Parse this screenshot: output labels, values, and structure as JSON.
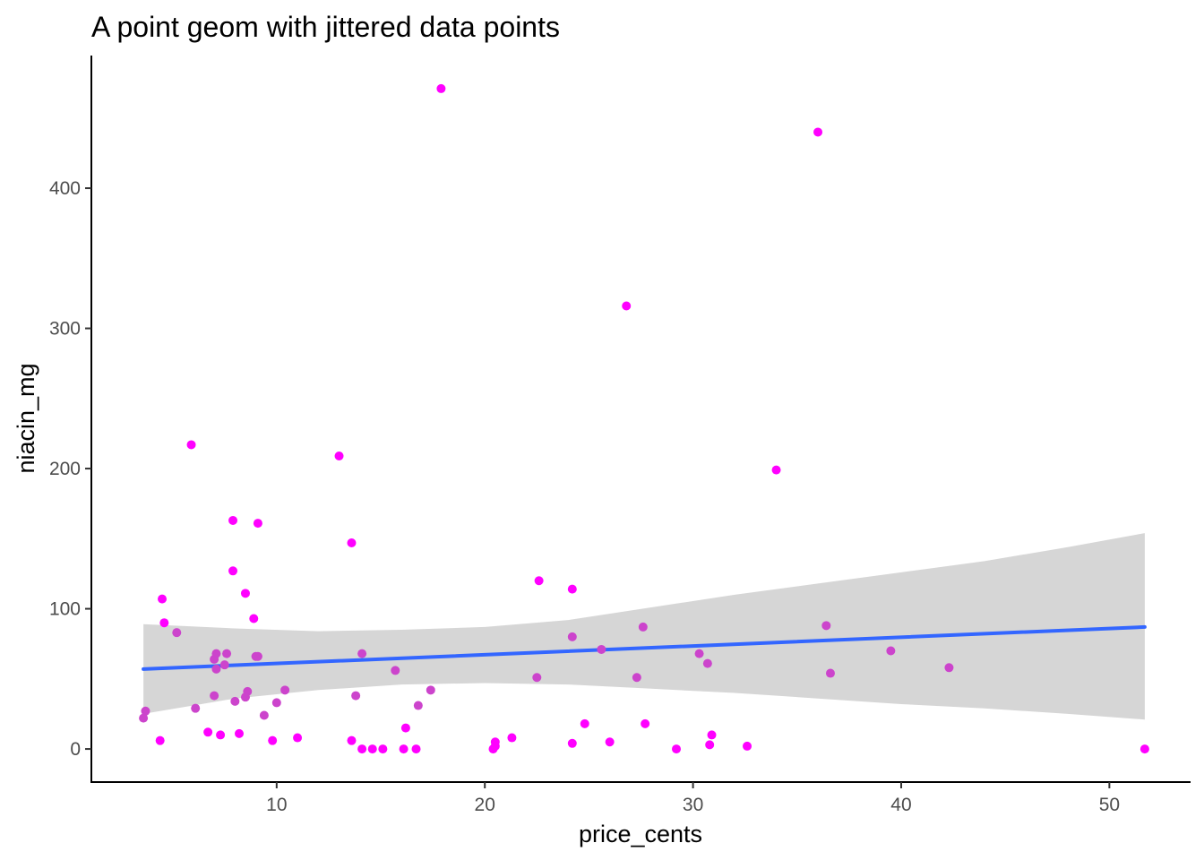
{
  "chart_data": {
    "type": "scatter",
    "title": "A point geom with jittered data points",
    "xlabel": "price_cents",
    "ylabel": "niacin_mg",
    "xlim": [
      1.1,
      53.9
    ],
    "ylim": [
      -23.6,
      494.6
    ],
    "x_ticks": [
      10,
      20,
      30,
      40,
      50
    ],
    "y_ticks": [
      0,
      100,
      200,
      300,
      400
    ],
    "grid": false,
    "legend": "none",
    "colors": {
      "point_pure": "#ff00ff",
      "point_muted": "#cc44cc",
      "smooth_line": "#3366ff",
      "confidence_band": "#d6d6d6"
    },
    "points": [
      {
        "x": 17.9,
        "y": 471,
        "c": "pure"
      },
      {
        "x": 36.0,
        "y": 440,
        "c": "pure"
      },
      {
        "x": 26.8,
        "y": 316,
        "c": "pure"
      },
      {
        "x": 5.9,
        "y": 217,
        "c": "pure"
      },
      {
        "x": 13.0,
        "y": 209,
        "c": "pure"
      },
      {
        "x": 34.0,
        "y": 199,
        "c": "pure"
      },
      {
        "x": 7.9,
        "y": 163,
        "c": "pure"
      },
      {
        "x": 9.1,
        "y": 161,
        "c": "pure"
      },
      {
        "x": 13.6,
        "y": 147,
        "c": "pure"
      },
      {
        "x": 7.9,
        "y": 127,
        "c": "pure"
      },
      {
        "x": 22.6,
        "y": 120,
        "c": "pure"
      },
      {
        "x": 24.2,
        "y": 114,
        "c": "pure"
      },
      {
        "x": 8.5,
        "y": 111,
        "c": "pure"
      },
      {
        "x": 4.5,
        "y": 107,
        "c": "pure"
      },
      {
        "x": 8.9,
        "y": 93,
        "c": "pure"
      },
      {
        "x": 4.6,
        "y": 90,
        "c": "pure"
      },
      {
        "x": 5.2,
        "y": 83,
        "c": "muted"
      },
      {
        "x": 36.4,
        "y": 88,
        "c": "muted"
      },
      {
        "x": 27.6,
        "y": 87,
        "c": "muted"
      },
      {
        "x": 24.2,
        "y": 80,
        "c": "muted"
      },
      {
        "x": 25.6,
        "y": 71,
        "c": "muted"
      },
      {
        "x": 39.5,
        "y": 70,
        "c": "muted"
      },
      {
        "x": 30.3,
        "y": 68,
        "c": "muted"
      },
      {
        "x": 14.1,
        "y": 68,
        "c": "muted"
      },
      {
        "x": 7.1,
        "y": 68,
        "c": "muted"
      },
      {
        "x": 7.6,
        "y": 68,
        "c": "muted"
      },
      {
        "x": 9.0,
        "y": 66,
        "c": "muted"
      },
      {
        "x": 9.1,
        "y": 66,
        "c": "muted"
      },
      {
        "x": 7.0,
        "y": 64,
        "c": "muted"
      },
      {
        "x": 30.7,
        "y": 61,
        "c": "muted"
      },
      {
        "x": 7.5,
        "y": 60,
        "c": "muted"
      },
      {
        "x": 7.1,
        "y": 57,
        "c": "muted"
      },
      {
        "x": 42.3,
        "y": 58,
        "c": "muted"
      },
      {
        "x": 15.7,
        "y": 56,
        "c": "muted"
      },
      {
        "x": 36.6,
        "y": 54,
        "c": "muted"
      },
      {
        "x": 22.5,
        "y": 51,
        "c": "muted"
      },
      {
        "x": 27.3,
        "y": 51,
        "c": "muted"
      },
      {
        "x": 10.4,
        "y": 42,
        "c": "muted"
      },
      {
        "x": 17.4,
        "y": 42,
        "c": "muted"
      },
      {
        "x": 8.6,
        "y": 41,
        "c": "muted"
      },
      {
        "x": 7.0,
        "y": 38,
        "c": "muted"
      },
      {
        "x": 13.8,
        "y": 38,
        "c": "muted"
      },
      {
        "x": 8.5,
        "y": 37,
        "c": "muted"
      },
      {
        "x": 8.0,
        "y": 34,
        "c": "muted"
      },
      {
        "x": 10.0,
        "y": 33,
        "c": "muted"
      },
      {
        "x": 16.8,
        "y": 31,
        "c": "muted"
      },
      {
        "x": 6.1,
        "y": 29,
        "c": "muted"
      },
      {
        "x": 3.7,
        "y": 27,
        "c": "muted"
      },
      {
        "x": 9.4,
        "y": 24,
        "c": "muted"
      },
      {
        "x": 3.6,
        "y": 22,
        "c": "muted"
      },
      {
        "x": 24.8,
        "y": 18,
        "c": "pure"
      },
      {
        "x": 27.7,
        "y": 18,
        "c": "pure"
      },
      {
        "x": 16.2,
        "y": 15,
        "c": "pure"
      },
      {
        "x": 6.7,
        "y": 12,
        "c": "pure"
      },
      {
        "x": 8.2,
        "y": 11,
        "c": "pure"
      },
      {
        "x": 7.3,
        "y": 10,
        "c": "pure"
      },
      {
        "x": 30.9,
        "y": 10,
        "c": "pure"
      },
      {
        "x": 11.0,
        "y": 8,
        "c": "pure"
      },
      {
        "x": 21.3,
        "y": 8,
        "c": "pure"
      },
      {
        "x": 4.4,
        "y": 6,
        "c": "pure"
      },
      {
        "x": 9.8,
        "y": 6,
        "c": "pure"
      },
      {
        "x": 13.6,
        "y": 6,
        "c": "pure"
      },
      {
        "x": 20.5,
        "y": 5,
        "c": "pure"
      },
      {
        "x": 24.2,
        "y": 4,
        "c": "pure"
      },
      {
        "x": 26.0,
        "y": 5,
        "c": "pure"
      },
      {
        "x": 20.5,
        "y": 2,
        "c": "pure"
      },
      {
        "x": 30.8,
        "y": 3,
        "c": "pure"
      },
      {
        "x": 32.6,
        "y": 2,
        "c": "pure"
      },
      {
        "x": 14.1,
        "y": 0,
        "c": "pure"
      },
      {
        "x": 14.6,
        "y": 0,
        "c": "pure"
      },
      {
        "x": 15.1,
        "y": 0,
        "c": "pure"
      },
      {
        "x": 16.1,
        "y": 0,
        "c": "pure"
      },
      {
        "x": 16.7,
        "y": 0,
        "c": "pure"
      },
      {
        "x": 20.4,
        "y": 0,
        "c": "pure"
      },
      {
        "x": 29.2,
        "y": 0,
        "c": "pure"
      },
      {
        "x": 51.7,
        "y": 0,
        "c": "pure"
      }
    ],
    "smooth": {
      "method": "linear",
      "x": [
        3.6,
        51.7
      ],
      "y": [
        57,
        87
      ],
      "band": [
        {
          "x": 3.6,
          "lo": 25,
          "hi": 89
        },
        {
          "x": 8,
          "lo": 36,
          "hi": 86
        },
        {
          "x": 12,
          "lo": 42,
          "hi": 84
        },
        {
          "x": 16,
          "lo": 46,
          "hi": 85
        },
        {
          "x": 20,
          "lo": 47,
          "hi": 87
        },
        {
          "x": 24,
          "lo": 46,
          "hi": 92
        },
        {
          "x": 28,
          "lo": 43,
          "hi": 101
        },
        {
          "x": 32,
          "lo": 40,
          "hi": 110
        },
        {
          "x": 36,
          "lo": 36,
          "hi": 118
        },
        {
          "x": 40,
          "lo": 32,
          "hi": 126
        },
        {
          "x": 44,
          "lo": 29,
          "hi": 134
        },
        {
          "x": 48,
          "lo": 25,
          "hi": 144
        },
        {
          "x": 51.7,
          "lo": 21,
          "hi": 154
        }
      ]
    }
  }
}
